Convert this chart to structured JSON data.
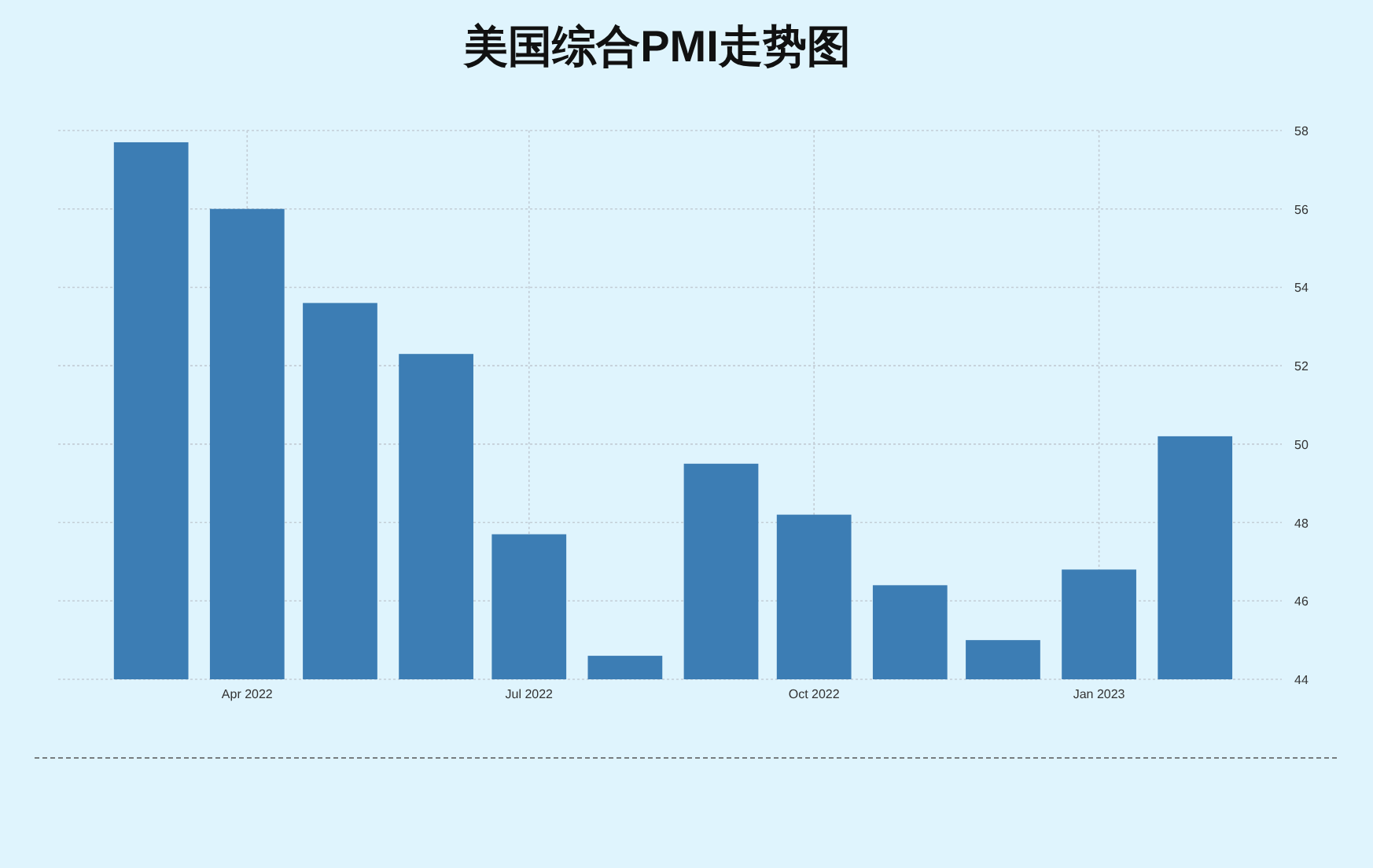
{
  "chart_data": {
    "type": "bar",
    "title": "美国综合PMI走势图",
    "x": [
      "2022-03",
      "2022-04",
      "2022-05",
      "2022-06",
      "2022-07",
      "2022-08",
      "2022-09",
      "2022-10",
      "2022-11",
      "2022-12",
      "2023-01",
      "2023-02"
    ],
    "values": [
      57.7,
      56.0,
      53.6,
      52.3,
      47.7,
      44.6,
      49.5,
      48.2,
      46.4,
      45.0,
      46.8,
      50.2
    ],
    "color": "#3c7db4",
    "xlim": [
      "2022-01-30",
      "2023-03-01"
    ],
    "xticks": [
      {
        "value": "2022-04-01",
        "label": "Apr 2022"
      },
      {
        "value": "2022-07-01",
        "label": "Jul 2022"
      },
      {
        "value": "2022-10-01",
        "label": "Oct 2022"
      },
      {
        "value": "2023-01-01",
        "label": "Jan 2023"
      }
    ],
    "ylim": [
      44,
      58
    ],
    "yticks": [
      44,
      46,
      48,
      50,
      52,
      54,
      56,
      58
    ],
    "grid": true
  }
}
